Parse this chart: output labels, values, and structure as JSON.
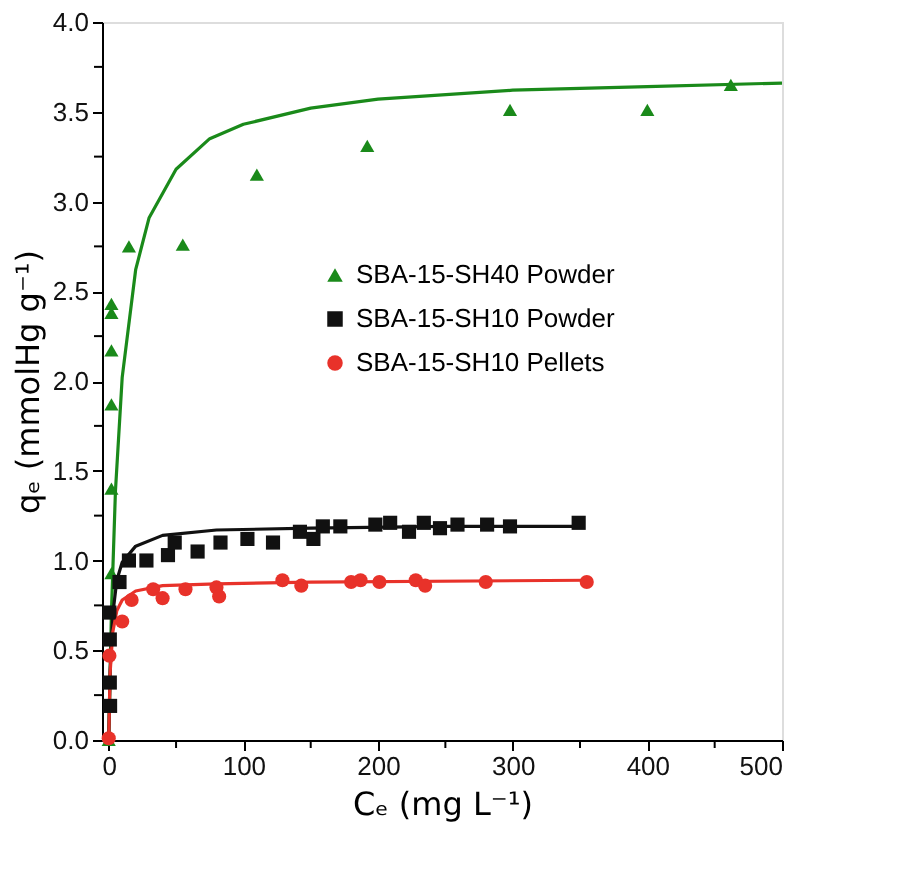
{
  "chart_data": {
    "type": "scatter",
    "xlabel": "Cₑ (mg L⁻¹)",
    "ylabel": "qₑ (mmolHg g⁻¹)",
    "xlim": [
      -5,
      500
    ],
    "ylim": [
      0,
      4
    ],
    "xticks": [
      0,
      {
        "value": 50,
        "label": null
      },
      100,
      {
        "value": 150,
        "label": null
      },
      200,
      {
        "value": 250,
        "label": null
      },
      300,
      {
        "value": 350,
        "label": null
      },
      400,
      {
        "value": 450,
        "label": null
      },
      500
    ],
    "yticks": [
      "0.0",
      {
        "value": 0.25,
        "label": null
      },
      0.5,
      {
        "value": 0.75,
        "label": null
      },
      "1.0",
      {
        "value": 1.25,
        "label": null
      },
      1.5,
      {
        "value": 1.75,
        "label": null
      },
      "2.0",
      {
        "value": 2.25,
        "label": null
      },
      2.5,
      {
        "value": 2.75,
        "label": null
      },
      "3.0",
      {
        "value": 3.25,
        "label": null
      },
      3.5,
      {
        "value": 3.75,
        "label": null
      },
      "4.0"
    ],
    "grid": false,
    "legend": "right",
    "series": [
      {
        "name": "SBA-15-SH40 Powder",
        "type": "scatter",
        "marker": "triangle",
        "color": "#1a8a1a",
        "x": [
          0,
          2,
          2,
          2,
          2,
          2,
          2,
          15,
          55,
          110,
          192,
          298,
          400,
          462
        ],
        "values": [
          0.0,
          0.93,
          1.4,
          1.87,
          2.17,
          2.38,
          2.43,
          2.75,
          2.76,
          3.15,
          3.31,
          3.51,
          3.51,
          3.65
        ]
      },
      {
        "name": "SBA-15-SH10 Powder",
        "type": "scatter",
        "marker": "square",
        "color": "#111111",
        "x": [
          0.5,
          0.8,
          0.8,
          1,
          8,
          15,
          28,
          44,
          49,
          66,
          83,
          103,
          122,
          142,
          152,
          159,
          172,
          198,
          209,
          223,
          234,
          246,
          259,
          281,
          298,
          349
        ],
        "values": [
          0.71,
          0.56,
          0.32,
          0.19,
          0.88,
          1.0,
          1.0,
          1.03,
          1.1,
          1.05,
          1.1,
          1.12,
          1.1,
          1.16,
          1.12,
          1.19,
          1.19,
          1.2,
          1.21,
          1.16,
          1.21,
          1.18,
          1.2,
          1.2,
          1.19,
          1.21
        ]
      },
      {
        "name": "SBA-15-SH10 Pellets",
        "type": "scatter",
        "marker": "circle",
        "color": "#e8322a",
        "x": [
          0,
          0.5,
          10,
          17,
          33,
          40,
          57,
          80,
          82,
          129,
          143,
          180,
          185,
          187,
          201,
          228,
          235,
          280,
          355
        ],
        "values": [
          0.01,
          0.47,
          0.66,
          0.78,
          0.84,
          0.79,
          0.84,
          0.85,
          0.8,
          0.89,
          0.86,
          0.88,
          null,
          0.89,
          0.88,
          0.89,
          0.86,
          0.88,
          0.88
        ]
      },
      {
        "type": "line",
        "color": "#1a8a1a",
        "x": [
          0,
          2,
          5,
          10,
          20,
          30,
          50,
          75,
          100,
          150,
          200,
          300,
          400,
          500
        ],
        "values": [
          0,
          0.71,
          1.39,
          2.02,
          2.62,
          2.91,
          3.18,
          3.35,
          3.43,
          3.52,
          3.57,
          3.62,
          3.64,
          3.66
        ]
      },
      {
        "type": "line",
        "color": "#111111",
        "x": [
          0,
          1,
          3,
          6,
          10,
          20,
          40,
          80,
          150,
          250,
          348
        ],
        "values": [
          0,
          0.38,
          0.7,
          0.89,
          0.99,
          1.08,
          1.14,
          1.17,
          1.18,
          1.19,
          1.19
        ]
      },
      {
        "type": "line",
        "color": "#e8322a",
        "x": [
          0,
          1,
          3,
          6,
          10,
          20,
          40,
          80,
          150,
          355
        ],
        "values": [
          0,
          0.37,
          0.6,
          0.72,
          0.78,
          0.83,
          0.86,
          0.87,
          0.88,
          0.89
        ]
      }
    ]
  }
}
